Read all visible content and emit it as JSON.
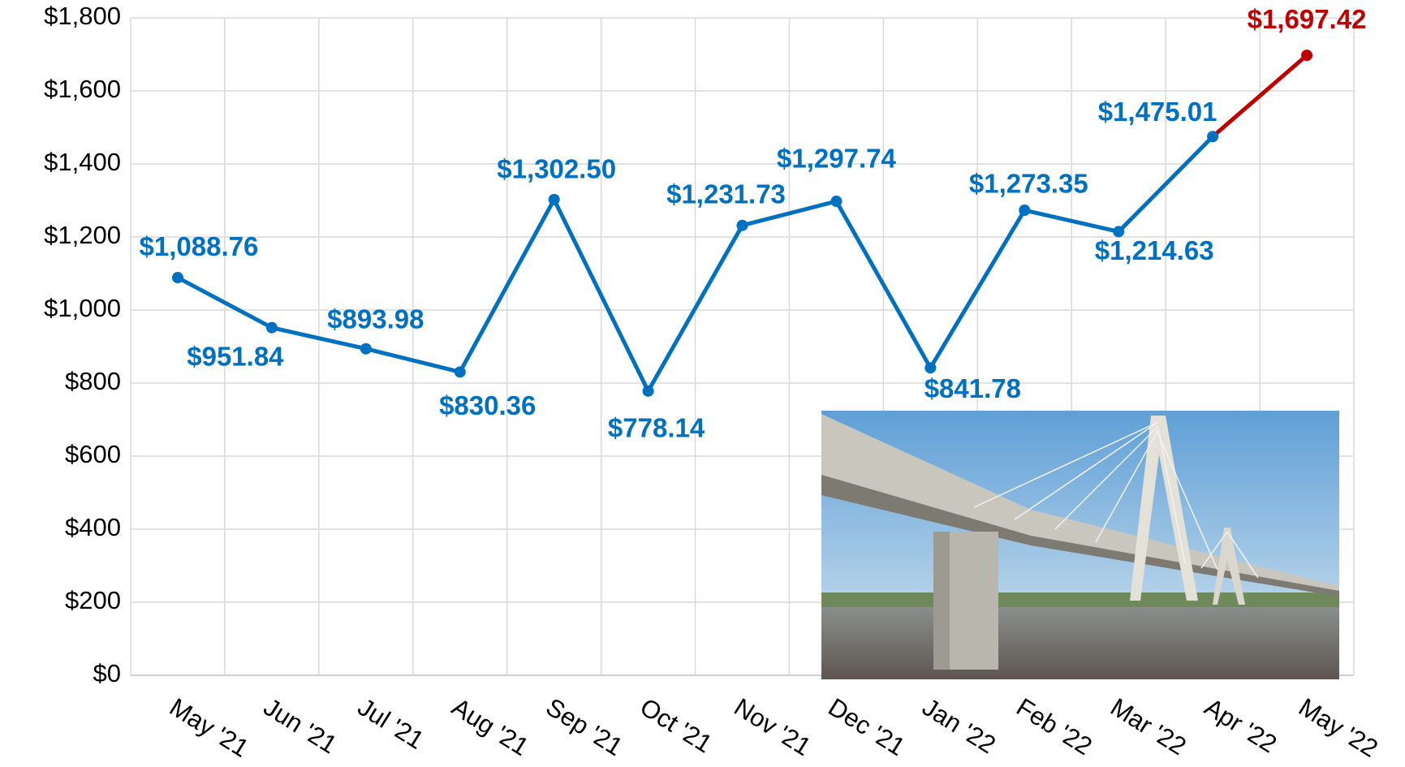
{
  "chart_data": {
    "type": "line",
    "categories": [
      "May '21",
      "Jun '21",
      "Jul '21",
      "Aug '21",
      "Sep '21",
      "Oct '21",
      "Nov '21",
      "Dec '21",
      "Jan '22",
      "Feb '22",
      "Mar '22",
      "Apr '22",
      "May '22"
    ],
    "values": [
      1088.76,
      951.84,
      893.98,
      830.36,
      1302.5,
      778.14,
      1231.73,
      1297.74,
      841.78,
      1273.35,
      1214.63,
      1475.01,
      1697.42
    ],
    "value_labels": [
      "$1,088.76",
      "$951.84",
      "$893.98",
      "$830.36",
      "$1,302.50",
      "$778.14",
      "$1,231.73",
      "$1,297.74",
      "$841.78",
      "$1,273.35",
      "$1,214.63",
      "$1,475.01",
      "$1,697.42"
    ],
    "colors": [
      "#0070c0",
      "#0070c0",
      "#0070c0",
      "#0070c0",
      "#0070c0",
      "#0070c0",
      "#0070c0",
      "#0070c0",
      "#0070c0",
      "#0070c0",
      "#0070c0",
      "#0070c0",
      "#c00000"
    ],
    "ylim": [
      0,
      1800
    ],
    "yticks": [
      {
        "value": 0,
        "label": "$0"
      },
      {
        "value": 200,
        "label": "$200"
      },
      {
        "value": 400,
        "label": "$400"
      },
      {
        "value": 600,
        "label": "$600"
      },
      {
        "value": 800,
        "label": "$800"
      },
      {
        "value": 1000,
        "label": "$1,000"
      },
      {
        "value": 1200,
        "label": "$1,200"
      },
      {
        "value": 1400,
        "label": "$1,400"
      },
      {
        "value": 1600,
        "label": "$1,600"
      },
      {
        "value": 1800,
        "label": "$1,800"
      }
    ],
    "grid": true
  }
}
